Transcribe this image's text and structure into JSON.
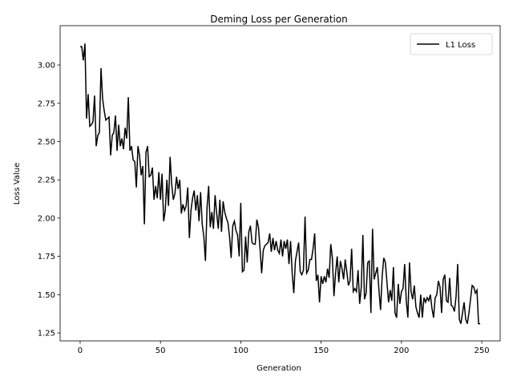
{
  "chart_data": {
    "type": "line",
    "title": "Deming Loss per Generation",
    "x_label": "Generation",
    "y_label": "Loss Value",
    "x": [
      0,
      1,
      2,
      3,
      4,
      5,
      6,
      7,
      8,
      9,
      10,
      11,
      12,
      13,
      14,
      15,
      16,
      17,
      18,
      19,
      20,
      21,
      22,
      23,
      24,
      25,
      26,
      27,
      28,
      29,
      30,
      31,
      32,
      33,
      34,
      35,
      36,
      37,
      38,
      39,
      40,
      41,
      42,
      43,
      44,
      45,
      46,
      47,
      48,
      49,
      50,
      51,
      52,
      53,
      54,
      55,
      56,
      57,
      58,
      59,
      60,
      61,
      62,
      63,
      64,
      65,
      66,
      67,
      68,
      69,
      70,
      71,
      72,
      73,
      74,
      75,
      76,
      77,
      78,
      79,
      80,
      81,
      82,
      83,
      84,
      85,
      86,
      87,
      88,
      89,
      90,
      91,
      92,
      93,
      94,
      95,
      96,
      97,
      98,
      99,
      100,
      101,
      102,
      103,
      104,
      105,
      106,
      107,
      108,
      109,
      110,
      111,
      112,
      113,
      114,
      115,
      116,
      117,
      118,
      119,
      120,
      121,
      122,
      123,
      124,
      125,
      126,
      127,
      128,
      129,
      130,
      131,
      132,
      133,
      134,
      135,
      136,
      137,
      138,
      139,
      140,
      141,
      142,
      143,
      144,
      145,
      146,
      147,
      148,
      149,
      150,
      151,
      152,
      153,
      154,
      155,
      156,
      157,
      158,
      159,
      160,
      161,
      162,
      163,
      164,
      165,
      166,
      167,
      168,
      169,
      170,
      171,
      172,
      173,
      174,
      175,
      176,
      177,
      178,
      179,
      180,
      181,
      182,
      183,
      184,
      185,
      186,
      187,
      188,
      189,
      190,
      191,
      192,
      193,
      194,
      195,
      196,
      197,
      198,
      199,
      200,
      201,
      202,
      203,
      204,
      205,
      206,
      207,
      208,
      209,
      210,
      211,
      212,
      213,
      214,
      215,
      216,
      217,
      218,
      219,
      220,
      221,
      222,
      223,
      224,
      225,
      226,
      227,
      228,
      229,
      230,
      231,
      232,
      233,
      234,
      235,
      236,
      237,
      238,
      239,
      240,
      241,
      242,
      243,
      244,
      245,
      246,
      247,
      248,
      249
    ],
    "series": [
      {
        "name": "L1 Loss",
        "color": "#000000",
        "values": [
          3.12,
          3.12,
          3.03,
          3.14,
          2.65,
          2.81,
          2.6,
          2.61,
          2.63,
          2.8,
          2.47,
          2.54,
          2.56,
          2.98,
          2.78,
          2.7,
          2.64,
          2.65,
          2.66,
          2.41,
          2.54,
          2.56,
          2.67,
          2.44,
          2.61,
          2.47,
          2.52,
          2.45,
          2.59,
          2.52,
          2.79,
          2.44,
          2.47,
          2.38,
          2.37,
          2.2,
          2.47,
          2.41,
          2.28,
          2.34,
          1.96,
          2.43,
          2.47,
          2.27,
          2.28,
          2.33,
          2.12,
          2.21,
          2.13,
          2.3,
          2.12,
          2.29,
          1.98,
          2.05,
          2.25,
          2.08,
          2.4,
          2.22,
          2.12,
          2.16,
          2.27,
          2.19,
          2.25,
          2.03,
          2.09,
          2.05,
          2.08,
          2.2,
          1.87,
          2.05,
          2.13,
          2.18,
          2.05,
          2.15,
          1.98,
          2.17,
          1.96,
          1.88,
          1.72,
          2.07,
          2.21,
          1.94,
          2.04,
          1.93,
          2.15,
          2.03,
          1.93,
          2.12,
          1.91,
          2.11,
          2.04,
          2.0,
          1.97,
          1.88,
          1.74,
          1.95,
          1.98,
          1.92,
          1.89,
          1.75,
          2.1,
          1.65,
          1.66,
          1.88,
          1.71,
          1.91,
          1.95,
          1.84,
          1.83,
          1.83,
          1.99,
          1.94,
          1.8,
          1.64,
          1.79,
          1.82,
          1.83,
          1.84,
          1.9,
          1.78,
          1.87,
          1.79,
          1.85,
          1.79,
          1.77,
          1.86,
          1.75,
          1.85,
          1.8,
          1.86,
          1.7,
          1.85,
          1.64,
          1.51,
          1.72,
          1.78,
          1.84,
          1.65,
          1.63,
          1.66,
          2.01,
          1.64,
          1.66,
          1.73,
          1.73,
          1.8,
          1.9,
          1.59,
          1.63,
          1.45,
          1.62,
          1.57,
          1.62,
          1.58,
          1.67,
          1.61,
          1.83,
          1.74,
          1.49,
          1.64,
          1.75,
          1.58,
          1.72,
          1.67,
          1.6,
          1.73,
          1.65,
          1.56,
          1.59,
          1.8,
          1.52,
          1.54,
          1.52,
          1.66,
          1.44,
          1.55,
          1.89,
          1.47,
          1.51,
          1.71,
          1.72,
          1.38,
          1.93,
          1.6,
          1.64,
          1.68,
          1.53,
          1.4,
          1.62,
          1.74,
          1.71,
          1.58,
          1.45,
          1.53,
          1.46,
          1.68,
          1.38,
          1.35,
          1.57,
          1.44,
          1.52,
          1.54,
          1.7,
          1.46,
          1.35,
          1.71,
          1.52,
          1.47,
          1.56,
          1.42,
          1.38,
          1.35,
          1.5,
          1.35,
          1.48,
          1.45,
          1.48,
          1.46,
          1.5,
          1.41,
          1.35,
          1.48,
          1.5,
          1.59,
          1.55,
          1.38,
          1.6,
          1.63,
          1.46,
          1.45,
          1.61,
          1.43,
          1.42,
          1.39,
          1.49,
          1.7,
          1.34,
          1.31,
          1.38,
          1.45,
          1.34,
          1.31,
          1.38,
          1.47,
          1.56,
          1.55,
          1.51,
          1.53,
          1.31,
          1.31
        ]
      }
    ],
    "xlim": [
      -12.45,
      261.45
    ],
    "xticks": [
      0,
      50,
      100,
      150,
      200,
      250
    ],
    "ylim": [
      1.198,
      3.257
    ],
    "yticks": [
      {
        "value": 1.25,
        "label": "1.25"
      },
      {
        "value": 1.5,
        "label": "1.50"
      },
      {
        "value": 1.75,
        "label": "1.75"
      },
      {
        "value": 2.0,
        "label": "2.00"
      },
      {
        "value": 2.25,
        "label": "2.25"
      },
      {
        "value": 2.5,
        "label": "2.50"
      },
      {
        "value": 2.75,
        "label": "2.75"
      },
      {
        "value": 3.0,
        "label": "3.00"
      }
    ],
    "legend": "upper right"
  }
}
